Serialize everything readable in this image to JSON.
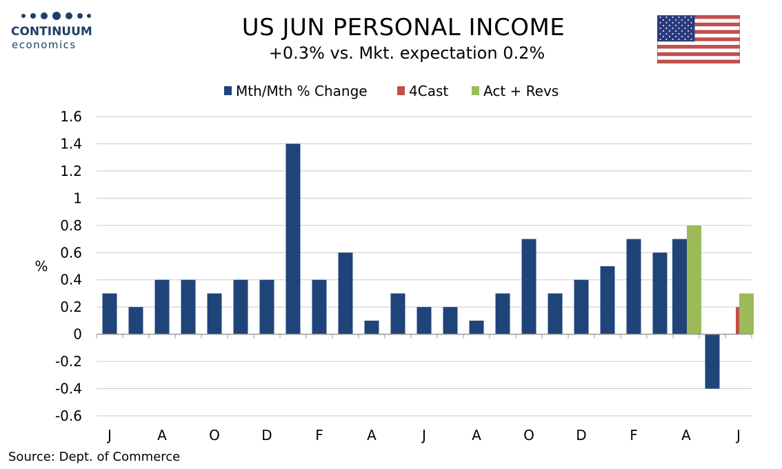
{
  "header": {
    "logo_brand": "CONTINUUM",
    "logo_sub": "economics",
    "title": "US JUN PERSONAL INCOME",
    "subtitle": "+0.3% vs. Mkt. expectation 0.2%",
    "flag": "us-flag-icon"
  },
  "footer": {
    "source": "Source: Dept. of Commerce"
  },
  "colors": {
    "series1": "#1f4479",
    "series2": "#c0504d",
    "series3": "#9bbb59",
    "logo": "#1f3f66"
  },
  "chart_data": {
    "type": "bar",
    "ylabel": "%",
    "ylim": [
      -0.6,
      1.6
    ],
    "yticks": [
      1.6,
      1.4,
      1.2,
      1,
      0.8,
      0.6,
      0.4,
      0.2,
      0,
      -0.2,
      -0.4,
      -0.6
    ],
    "grid": true,
    "legend_position": "top-center",
    "x_tick_labels": [
      "J",
      "A",
      "O",
      "D",
      "F",
      "A",
      "J",
      "A",
      "O",
      "D",
      "F",
      "A",
      "J"
    ],
    "series": [
      {
        "name": "Mth/Mth % Change",
        "color": "#1f4479",
        "values": [
          0.3,
          0.2,
          0.4,
          0.4,
          0.3,
          0.4,
          0.4,
          1.4,
          0.4,
          0.6,
          0.1,
          0.3,
          0.2,
          0.2,
          0.1,
          0.3,
          0.7,
          0.3,
          0.4,
          0.5,
          0.7,
          0.6,
          0.7,
          -0.4,
          null
        ]
      },
      {
        "name": "4Cast",
        "color": "#c0504d",
        "values": [
          null,
          null,
          null,
          null,
          null,
          null,
          null,
          null,
          null,
          null,
          null,
          null,
          null,
          null,
          null,
          null,
          null,
          null,
          null,
          null,
          null,
          null,
          null,
          null,
          0.2
        ]
      },
      {
        "name": "Act + Revs",
        "color": "#9bbb59",
        "values": [
          null,
          null,
          null,
          null,
          null,
          null,
          null,
          null,
          null,
          null,
          null,
          null,
          null,
          null,
          null,
          null,
          null,
          null,
          null,
          null,
          null,
          null,
          0.8,
          null,
          0.3
        ]
      }
    ]
  }
}
